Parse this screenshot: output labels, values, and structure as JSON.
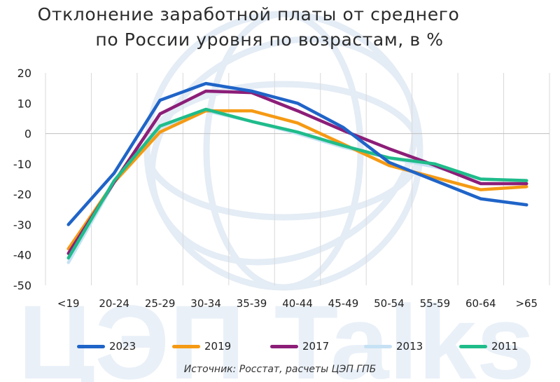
{
  "title": {
    "line1": "Отклонение заработной платы от среднего",
    "line2": "по России уровня по возрастам, в %"
  },
  "watermark": "ЦЭП Talks",
  "source": "Источник: Росстат, расчеты ЦЭП ГПБ",
  "chart_data": {
    "type": "line",
    "categories": [
      "<19",
      "20-24",
      "25-29",
      "30-34",
      "35-39",
      "40-44",
      "45-49",
      "50-54",
      "55-59",
      "60-64",
      ">65"
    ],
    "ylim": [
      -50,
      20
    ],
    "yticks": [
      20,
      10,
      0,
      -10,
      -20,
      -30,
      -40,
      -50
    ],
    "grid": "vertical",
    "legend_position": "bottom",
    "series": [
      {
        "name": "2023",
        "color": "#1f64c8",
        "values": [
          -30,
          -13,
          11,
          16.5,
          14,
          10,
          2,
          -9.5,
          -15.5,
          -21.5,
          -23.5
        ]
      },
      {
        "name": "2019",
        "color": "#f59a14",
        "values": [
          -38,
          -16,
          0.5,
          7.5,
          7.5,
          3.5,
          -3.5,
          -10.5,
          -14.5,
          -18.5,
          -17.5
        ]
      },
      {
        "name": "2017",
        "color": "#8c1e78",
        "values": [
          -39.5,
          -16,
          6.5,
          14,
          13.5,
          7.5,
          1,
          -5,
          -10.5,
          -16.5,
          -16.5
        ]
      },
      {
        "name": "2013",
        "color": "#c6e1f4",
        "values": [
          -42.5,
          -16,
          2,
          7.5,
          4,
          0,
          -4.5,
          -8,
          -11,
          -15,
          -15.5
        ]
      },
      {
        "name": "2011",
        "color": "#1fbc8a",
        "values": [
          -41,
          -15.5,
          2.5,
          8,
          4,
          0.5,
          -4,
          -8,
          -10,
          -15,
          -15.5
        ]
      }
    ]
  }
}
